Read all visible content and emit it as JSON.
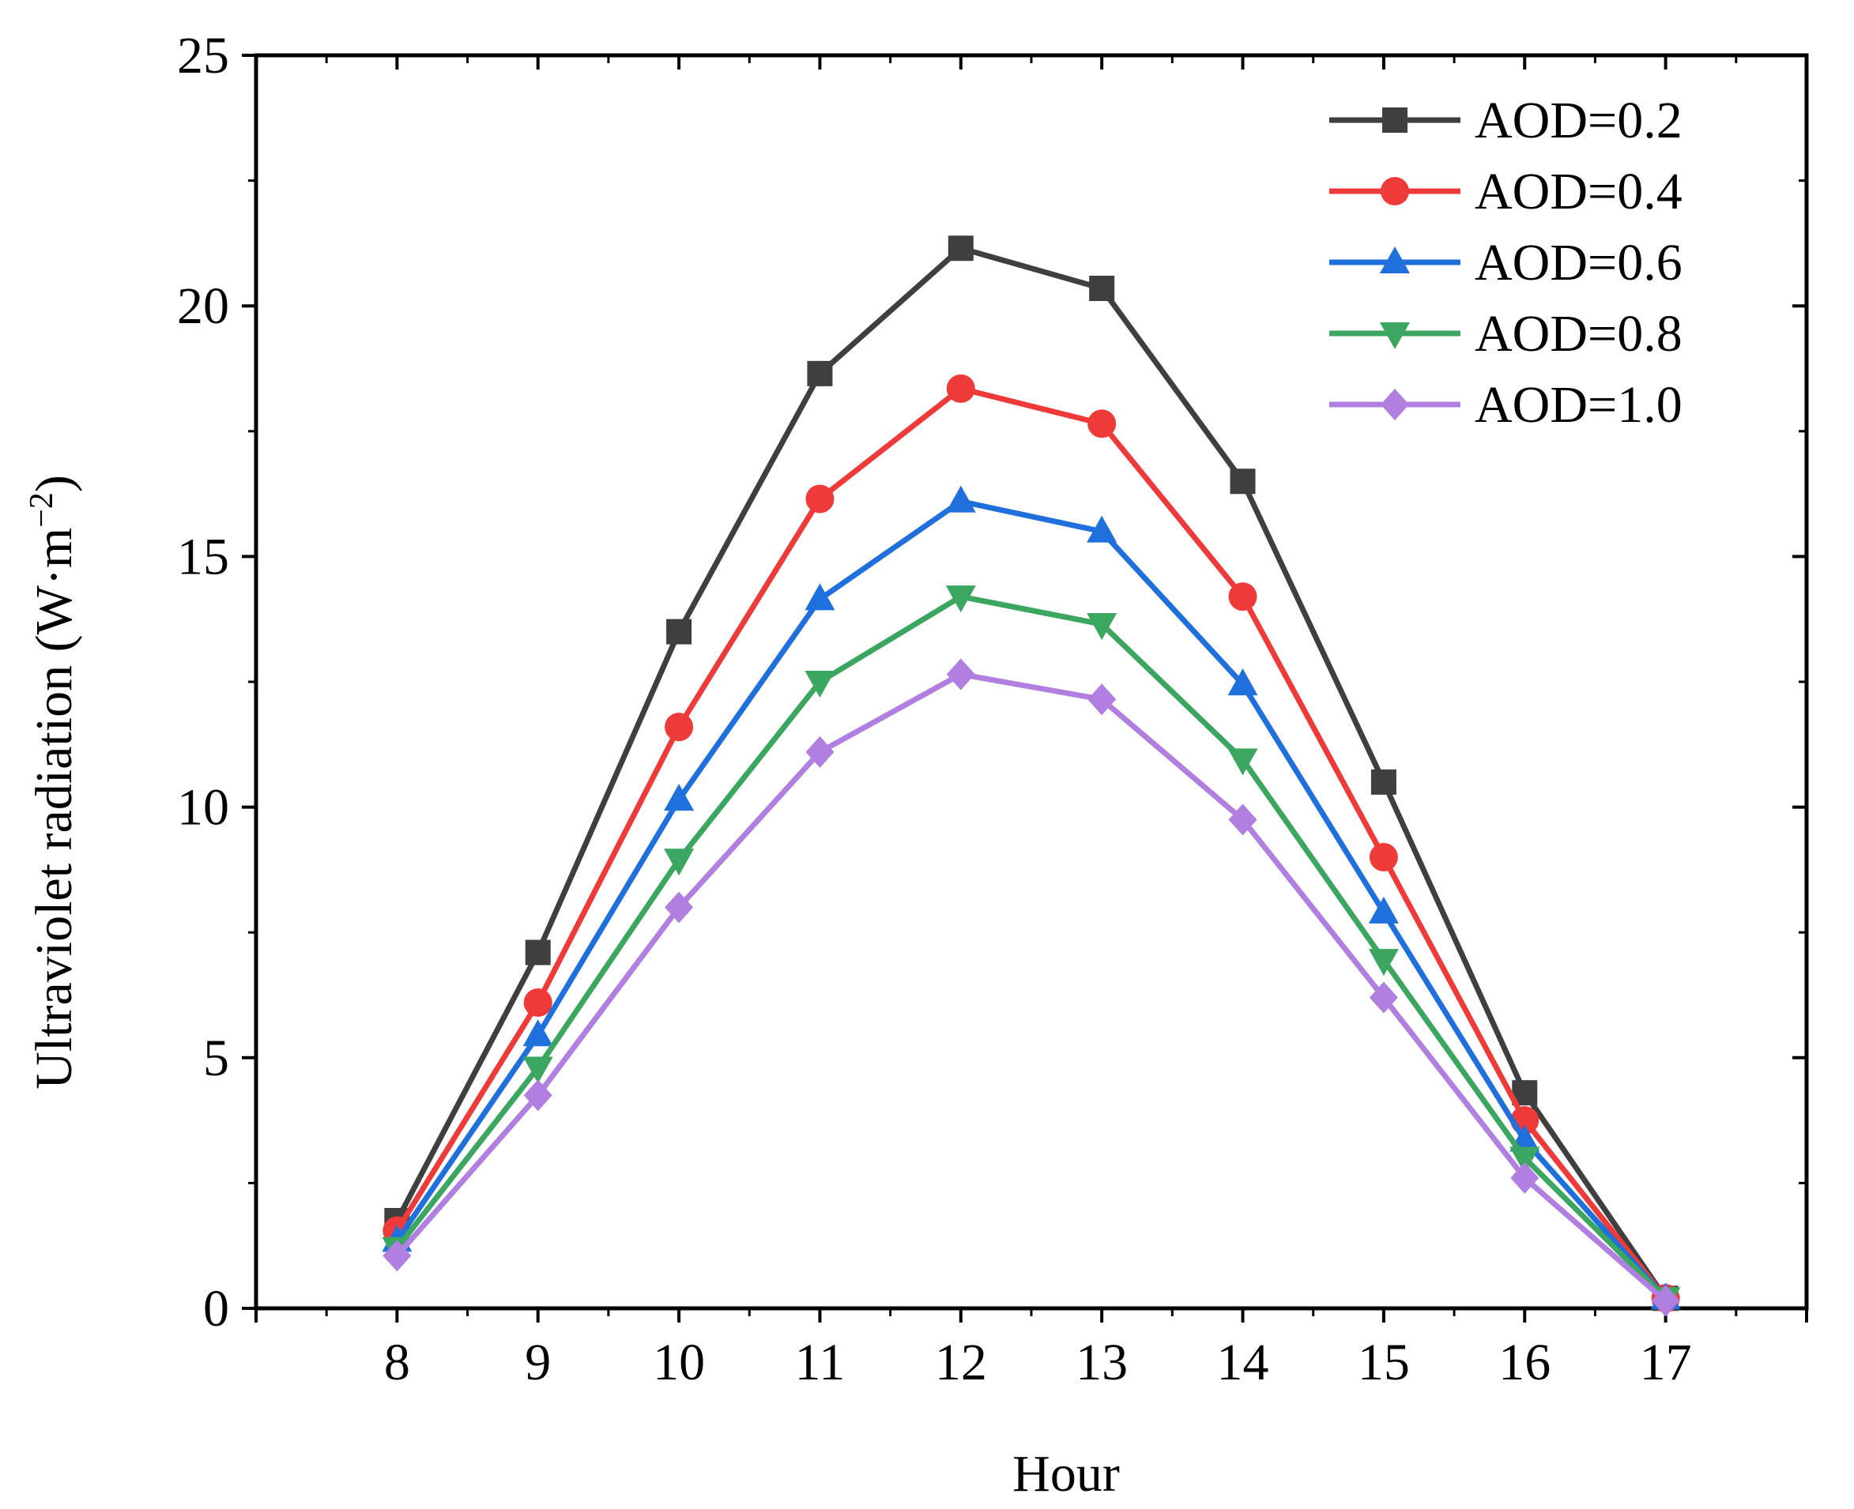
{
  "chart_data": {
    "type": "line",
    "title": "",
    "xlabel": "Hour",
    "ylabel": "Ultraviolet radiation (W·m",
    "ylabel_sup": "−2",
    "ylabel_close": ")",
    "x": [
      8,
      9,
      10,
      11,
      12,
      13,
      14,
      15,
      16,
      17
    ],
    "xtick_labels": [
      "8",
      "9",
      "10",
      "11",
      "12",
      "13",
      "14",
      "15",
      "16",
      "17"
    ],
    "xlim": [
      7,
      18
    ],
    "ylim": [
      0,
      25
    ],
    "yticks": [
      0,
      5,
      10,
      15,
      20,
      25
    ],
    "ytick_labels": [
      "0",
      "5",
      "10",
      "15",
      "20",
      "25"
    ],
    "grid": false,
    "legend_position": "top-right",
    "series": [
      {
        "name": "AOD=0.2",
        "color": "#3f3f3f",
        "marker": "square",
        "values": [
          1.75,
          7.1,
          13.5,
          18.65,
          21.15,
          20.35,
          16.5,
          10.5,
          4.3,
          0.2
        ]
      },
      {
        "name": "AOD=0.4",
        "color": "#ef3a3a",
        "marker": "circle",
        "values": [
          1.55,
          6.1,
          11.6,
          16.15,
          18.35,
          17.65,
          14.2,
          9.0,
          3.75,
          0.2
        ]
      },
      {
        "name": "AOD=0.6",
        "color": "#1f6fdc",
        "marker": "triangle-up",
        "values": [
          1.35,
          5.45,
          10.15,
          14.15,
          16.1,
          15.5,
          12.45,
          7.9,
          3.35,
          0.2
        ]
      },
      {
        "name": "AOD=0.8",
        "color": "#3aa65f",
        "marker": "triangle-down",
        "values": [
          1.2,
          4.8,
          8.95,
          12.5,
          14.2,
          13.65,
          10.95,
          6.95,
          3.0,
          0.2
        ]
      },
      {
        "name": "AOD=1.0",
        "color": "#b07fe0",
        "marker": "diamond",
        "values": [
          1.05,
          4.25,
          8.0,
          11.1,
          12.65,
          12.15,
          9.75,
          6.2,
          2.6,
          0.15
        ]
      }
    ]
  }
}
